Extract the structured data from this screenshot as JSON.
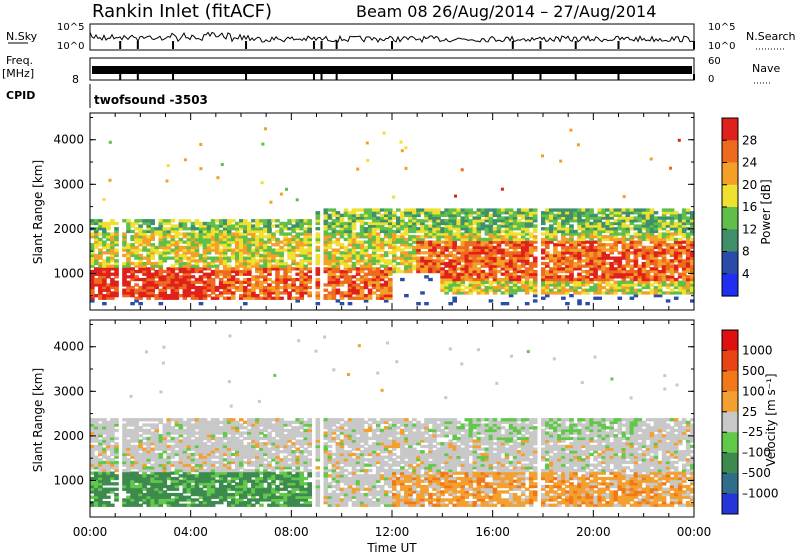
{
  "header": {
    "station": "Rankin Inlet (fitACF)",
    "beam": "Beam 08",
    "date_range": "26/Aug/2014 – 27/Aug/2014"
  },
  "top_panels": {
    "nsky_label": "N.Sky",
    "nsky_ticks": [
      "10^5",
      "10^0"
    ],
    "nsearch_label": "N.Search",
    "nsearch_ticks": [
      "10^5",
      "10^0"
    ],
    "freq_label": "Freq.",
    "freq_unit": "[MHz]",
    "freq_ticks": [
      "8"
    ],
    "nave_label": "Nave",
    "nave_ticks": [
      "60",
      "0"
    ],
    "cpid_label": "CPID",
    "cpid_value": "twofsound -3503"
  },
  "chart_data": [
    {
      "type": "heatmap",
      "quantity": "Power",
      "ylabel": "Slant Range [km]",
      "xlabel": "Time UT",
      "ylim": [
        180,
        4600
      ],
      "xlim_hours": [
        0,
        24
      ],
      "yticks": [
        "1000",
        "2000",
        "3000",
        "4000"
      ],
      "colorbar_label": "Power [dB]",
      "colorbar_ticks": [
        "4",
        "8",
        "12",
        "16",
        "20",
        "24",
        "28"
      ],
      "colorbar_colors": [
        "#1f2ef0",
        "#2a4ca8",
        "#3f8f6a",
        "#5fbf4a",
        "#f0e030",
        "#f4a028",
        "#ee6a1e",
        "#e0201a"
      ],
      "echo_bands": [
        {
          "t_start": 0,
          "t_end": 5,
          "range_lo": 400,
          "range_hi": 1100,
          "dominant": "28"
        },
        {
          "t_start": 0,
          "t_end": 12,
          "range_lo": 1100,
          "range_hi": 2200,
          "dominant": "20"
        },
        {
          "t_start": 12,
          "t_end": 24,
          "range_lo": 700,
          "range_hi": 1700,
          "dominant": "24"
        },
        {
          "t_start": 12,
          "t_end": 24,
          "range_lo": 1700,
          "range_hi": 2400,
          "dominant": "12"
        }
      ]
    },
    {
      "type": "heatmap",
      "quantity": "Velocity",
      "ylabel": "Slant Range [km]",
      "xlabel": "Time UT",
      "ylim": [
        180,
        4600
      ],
      "xlim_hours": [
        0,
        24
      ],
      "yticks": [
        "1000",
        "2000",
        "3000",
        "4000"
      ],
      "colorbar_label": "Velocity [m s⁻¹]",
      "colorbar_ticks": [
        "1000",
        "500",
        "100",
        "25",
        "–25",
        "–100",
        "–500",
        "–1000"
      ],
      "colorbar_colors": [
        "#2436d8",
        "#2e6e8a",
        "#3c8a4e",
        "#62c84a",
        "#c8c8c8",
        "#f4a030",
        "#f07818",
        "#e84414",
        "#e01010"
      ],
      "echo_bands": [
        {
          "t_start": 0,
          "t_end": 9,
          "range_lo": 400,
          "range_hi": 1100,
          "dominant": "100"
        },
        {
          "t_start": 0,
          "t_end": 24,
          "range_lo": 1100,
          "range_hi": 2400,
          "dominant": "25"
        },
        {
          "t_start": 12,
          "t_end": 24,
          "range_lo": 400,
          "range_hi": 1100,
          "dominant": "–100"
        }
      ]
    }
  ],
  "time_axis": {
    "label": "Time UT",
    "ticks": [
      "00:00",
      "04:00",
      "08:00",
      "12:00",
      "16:00",
      "20:00",
      "00:00"
    ]
  }
}
